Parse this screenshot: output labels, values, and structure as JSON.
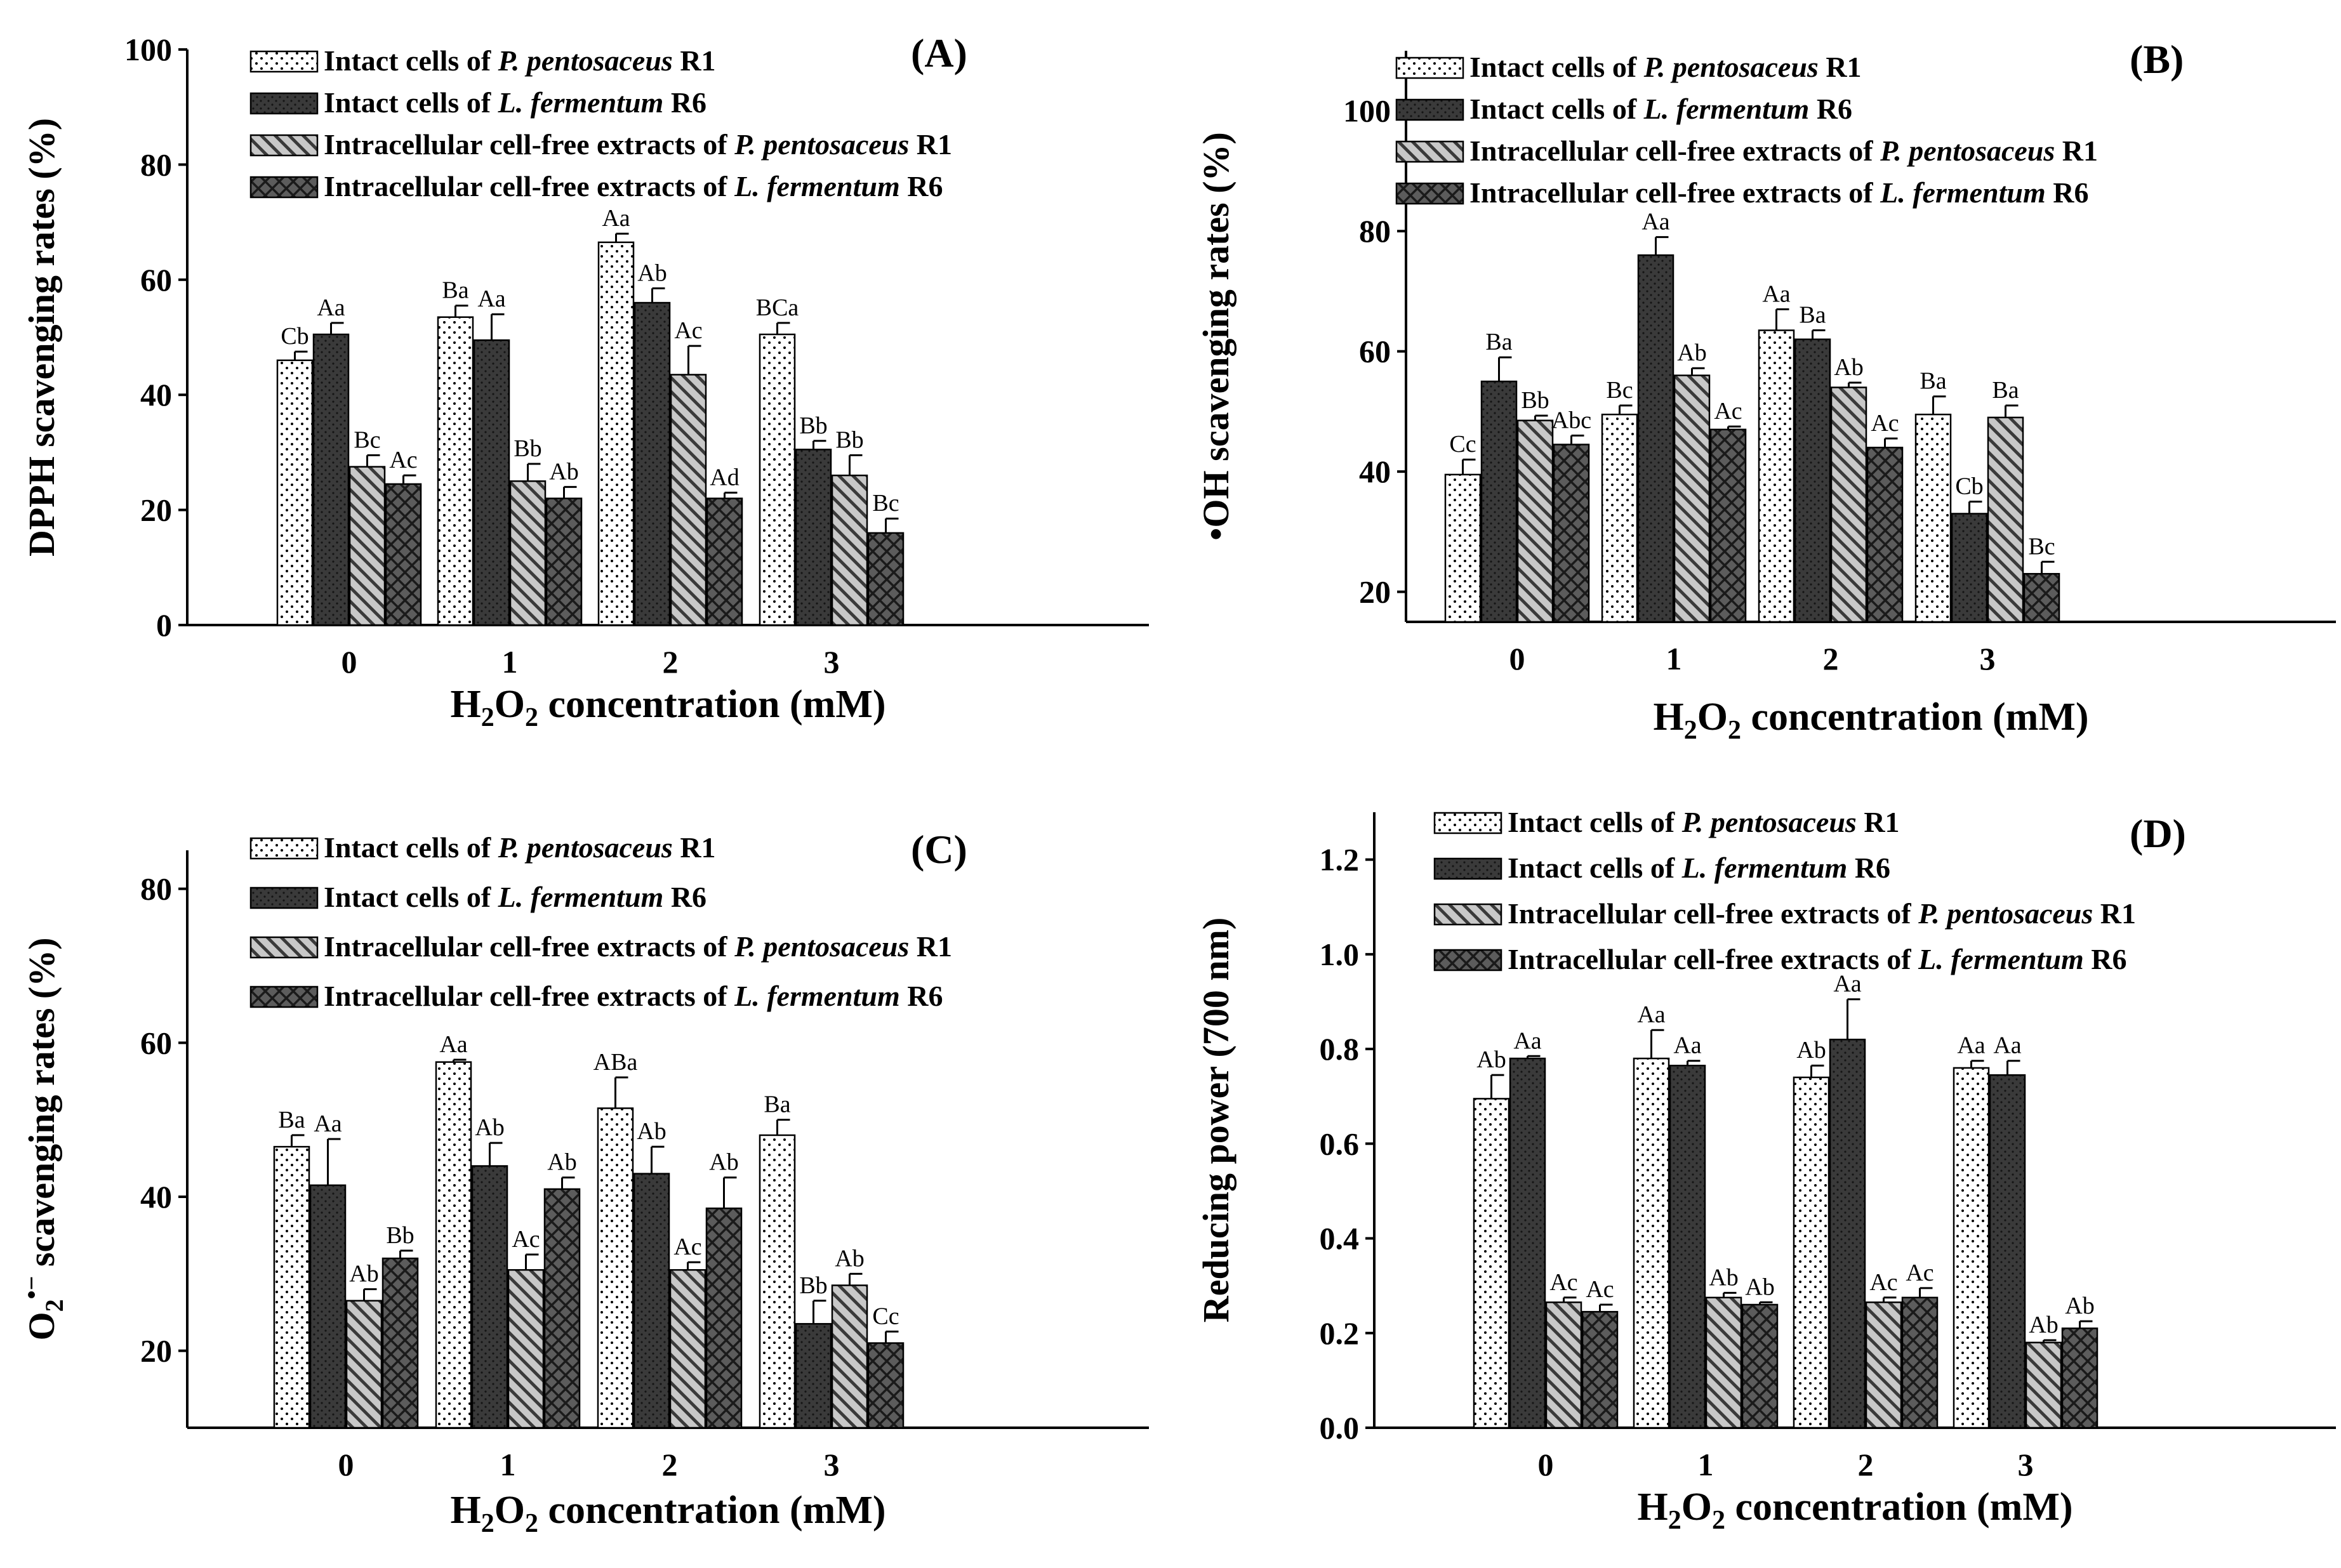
{
  "chart_data": [
    {
      "type": "bar",
      "panel_label": "(A)",
      "ylabel": "DPPH scavenging rates (%)",
      "xlabel": {
        "main": "H",
        "sub1": "2",
        "mid": "O",
        "sub2": "2",
        "rest": " concentration (mM)"
      },
      "categories": [
        "0",
        "1",
        "2",
        "3"
      ],
      "ylim": [
        0,
        100
      ],
      "yticks": [
        "0",
        "20",
        "40",
        "60",
        "80",
        "100"
      ],
      "series": [
        {
          "name": "Intact cells of P. pentosaceus R1",
          "legend": [
            "Intact cells of ",
            "P. pentosaceus",
            " R1"
          ],
          "values": [
            46,
            53.5,
            66.5,
            50.5
          ],
          "errors": [
            1.5,
            2,
            1.5,
            2
          ],
          "labels": [
            "Cb",
            "Ba",
            "Aa",
            "BCa"
          ]
        },
        {
          "name": "Intact cells of L. fermentum R6",
          "legend": [
            "Intact cells of ",
            "L. fermentum",
            " R6"
          ],
          "values": [
            50.5,
            49.5,
            56,
            30.5
          ],
          "errors": [
            2,
            4.5,
            2.5,
            1.5
          ],
          "labels": [
            "Aa",
            "Aa",
            "Ab",
            "Bb"
          ]
        },
        {
          "name": "Intracellular cell-free extracts of P. pentosaceus R1",
          "legend": [
            "Intracellular cell-free extracts of ",
            "P. pentosaceus",
            " R1"
          ],
          "values": [
            27.5,
            25,
            43.5,
            26
          ],
          "errors": [
            2,
            3,
            5,
            3.5
          ],
          "labels": [
            "Bc",
            "Bb",
            "Ac",
            "Bb"
          ]
        },
        {
          "name": "Intracellular cell-free extracts of L. fermentum R6",
          "legend": [
            "Intracellular cell-free extracts of ",
            "L. fermentum",
            " R6"
          ],
          "values": [
            24.5,
            22,
            22,
            16
          ],
          "errors": [
            1.5,
            2,
            1,
            2.5
          ],
          "labels": [
            "Ac",
            "Ab",
            "Ad",
            "Bc"
          ]
        }
      ]
    },
    {
      "type": "bar",
      "panel_label": "(B)",
      "ylabel": "•OH scavenging rates (%)",
      "xlabel": {
        "main": "H",
        "sub1": "2",
        "mid": "O",
        "sub2": "2",
        "rest": " concentration (mM)"
      },
      "categories": [
        "0",
        "1",
        "2",
        "3"
      ],
      "ylim": [
        15,
        110
      ],
      "yticks": [
        "20",
        "40",
        "60",
        "80",
        "100"
      ],
      "series": [
        {
          "name": "Intact cells of P. pentosaceus R1",
          "legend": [
            "Intact cells of ",
            "P. pentosaceus",
            " R1"
          ],
          "values": [
            39.5,
            49.5,
            63.5,
            49.5
          ],
          "errors": [
            2.5,
            1.5,
            3.5,
            3
          ],
          "labels": [
            "Cc",
            "Bc",
            "Aa",
            "Ba"
          ]
        },
        {
          "name": "Intact cells of L. fermentum R6",
          "legend": [
            "Intact cells of ",
            "L. fermentum",
            " R6"
          ],
          "values": [
            55,
            76,
            62,
            33
          ],
          "errors": [
            4,
            3,
            1.5,
            2
          ],
          "labels": [
            "Ba",
            "Aa",
            "Ba",
            "Cb"
          ]
        },
        {
          "name": "Intracellular cell-free extracts of P. pentosaceus R1",
          "legend": [
            "Intracellular cell-free extracts of ",
            "P. pentosaceus",
            " R1"
          ],
          "values": [
            48.5,
            56,
            54,
            49
          ],
          "errors": [
            0.8,
            1.2,
            0.8,
            2
          ],
          "labels": [
            "Bb",
            "Ab",
            "Ab",
            "Ba"
          ]
        },
        {
          "name": "Intracellular cell-free extracts of L. fermentum R6",
          "legend": [
            "Intracellular cell-free extracts of ",
            "L. fermentum",
            " R6"
          ],
          "values": [
            44.5,
            47,
            44,
            23
          ],
          "errors": [
            1.5,
            0.5,
            1.5,
            2
          ],
          "labels": [
            "Abc",
            "Ac",
            "Ac",
            "Bc"
          ]
        }
      ]
    },
    {
      "type": "bar",
      "panel_label": "(C)",
      "ylabel": {
        "main": "O",
        "sub": "2",
        "sup": "•−",
        "rest": " scavenging rates (%)"
      },
      "xlabel": {
        "main": "H",
        "sub1": "2",
        "mid": "O",
        "sub2": "2",
        "rest": " concentration (mM)"
      },
      "categories": [
        "0",
        "1",
        "2",
        "3"
      ],
      "ylim": [
        10,
        85
      ],
      "yticks": [
        "20",
        "40",
        "60",
        "80"
      ],
      "series": [
        {
          "name": "Intact cells of P. pentosaceus R1",
          "legend": [
            "Intact cells of ",
            "P. pentosaceus",
            " R1"
          ],
          "values": [
            46.5,
            57.5,
            51.5,
            48
          ],
          "errors": [
            1.5,
            0.3,
            4,
            2
          ],
          "labels": [
            "Ba",
            "Aa",
            "ABa",
            "Ba"
          ]
        },
        {
          "name": "Intact cells of L. fermentum R6",
          "legend": [
            "Intact cells of ",
            "L. fermentum",
            " R6"
          ],
          "values": [
            41.5,
            44,
            43,
            23.5
          ],
          "errors": [
            6,
            3,
            3.5,
            3
          ],
          "labels": [
            "Aa",
            "Ab",
            "Ab",
            "Bb"
          ]
        },
        {
          "name": "Intracellular cell-free extracts of P. pentosaceus R1",
          "legend": [
            "Intracellular cell-free extracts of ",
            "P. pentosaceus",
            " R1"
          ],
          "values": [
            26.5,
            30.5,
            30.5,
            28.5
          ],
          "errors": [
            1.5,
            2,
            1,
            1.5
          ],
          "labels": [
            "Ab",
            "Ac",
            "Ac",
            "Ab"
          ]
        },
        {
          "name": "Intracellular cell-free extracts of L. fermentum R6",
          "legend": [
            "Intracellular cell-free extracts of ",
            "L. fermentum",
            " R6"
          ],
          "values": [
            32,
            41,
            38.5,
            21
          ],
          "errors": [
            1,
            1.5,
            4,
            1.5
          ],
          "labels": [
            "Bb",
            "Ab",
            "Ab",
            "Cc"
          ]
        }
      ]
    },
    {
      "type": "bar",
      "panel_label": "(D)",
      "ylabel": "Reducing power (700 nm)",
      "xlabel": {
        "main": "H",
        "sub1": "2",
        "mid": "O",
        "sub2": "2",
        "rest": " concentration (mM)"
      },
      "categories": [
        "0",
        "1",
        "2",
        "3"
      ],
      "ylim": [
        0,
        1.3
      ],
      "yticks": [
        "0.0",
        "0.2",
        "0.4",
        "0.6",
        "0.8",
        "1.0",
        "1.2"
      ],
      "series": [
        {
          "name": "Intact cells of P. pentosaceus R1",
          "legend": [
            "Intact cells of ",
            "P. pentosaceus",
            " R1"
          ],
          "values": [
            0.695,
            0.78,
            0.74,
            0.76
          ],
          "errors": [
            0.05,
            0.06,
            0.025,
            0.015
          ],
          "labels": [
            "Ab",
            "Aa",
            "Ab",
            "Aa"
          ]
        },
        {
          "name": "Intact cells of L. fermentum R6",
          "legend": [
            "Intact cells of ",
            "L. fermentum",
            " R6"
          ],
          "values": [
            0.78,
            0.765,
            0.82,
            0.745
          ],
          "errors": [
            0.005,
            0.01,
            0.085,
            0.03
          ],
          "labels": [
            "Aa",
            "Aa",
            "Aa",
            "Aa"
          ]
        },
        {
          "name": "Intracellular cell-free extracts of P. pentosaceus R1",
          "legend": [
            "Intracellular cell-free extracts of ",
            "P. pentosaceus",
            " R1"
          ],
          "values": [
            0.265,
            0.275,
            0.265,
            0.18
          ],
          "errors": [
            0.01,
            0.01,
            0.01,
            0.005
          ],
          "labels": [
            "Ac",
            "Ab",
            "Ac",
            "Ab"
          ]
        },
        {
          "name": "Intracellular cell-free extracts of L. fermentum R6",
          "legend": [
            "Intracellular cell-free extracts of ",
            "L. fermentum",
            " R6"
          ],
          "values": [
            0.245,
            0.26,
            0.275,
            0.21
          ],
          "errors": [
            0.015,
            0.005,
            0.02,
            0.015
          ],
          "labels": [
            "Ac",
            "Ab",
            "Ac",
            "Ab"
          ]
        }
      ]
    }
  ]
}
